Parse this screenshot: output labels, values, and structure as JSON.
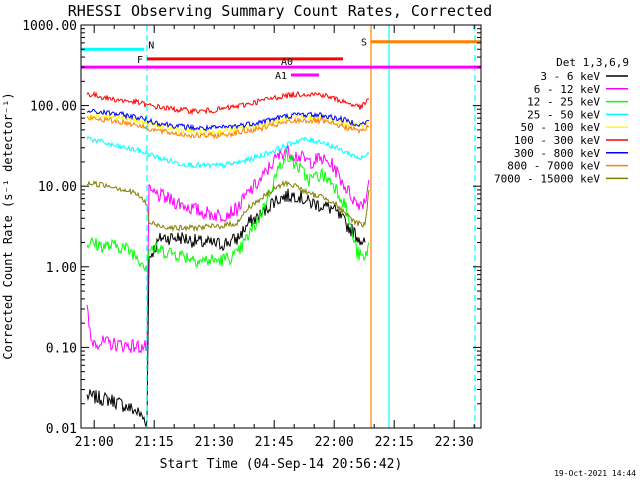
{
  "chart_data": {
    "type": "line",
    "title": "RHESSI Observing Summary Count Rates, Corrected",
    "xlabel": "Start Time (04-Sep-14 20:56:42)",
    "ylabel": "Corrected Count Rate (s⁻¹ detector⁻¹)",
    "x_unit": "minutes since 20:56:42",
    "xlim": [
      0,
      100
    ],
    "ylim": [
      0.01,
      1000
    ],
    "y_scale": "log",
    "x_ticks": [
      {
        "t": 3.3,
        "label": "21:00"
      },
      {
        "t": 18.3,
        "label": "21:15"
      },
      {
        "t": 33.3,
        "label": "21:30"
      },
      {
        "t": 48.3,
        "label": "21:45"
      },
      {
        "t": 63.3,
        "label": "22:00"
      },
      {
        "t": 78.3,
        "label": "22:15"
      },
      {
        "t": 93.3,
        "label": "22:30"
      }
    ],
    "y_ticks": [
      {
        "v": 0.01,
        "label": "0.01"
      },
      {
        "v": 0.1,
        "label": "0.10"
      },
      {
        "v": 1,
        "label": "1.00"
      },
      {
        "v": 10,
        "label": "10.00"
      },
      {
        "v": 100,
        "label": "100.00"
      },
      {
        "v": 1000,
        "label": "1000.00"
      }
    ],
    "legend": {
      "title": "Det 1,3,6,9",
      "position": "right"
    },
    "series": [
      {
        "name": "3 - 6 keV",
        "color": "#000000",
        "points": [
          [
            1.5,
            0.025
          ],
          [
            8,
            0.022
          ],
          [
            14,
            0.016
          ],
          [
            16.5,
            0.012
          ],
          [
            17,
            1.3
          ],
          [
            20,
            2.3
          ],
          [
            25,
            2.3
          ],
          [
            30,
            2.0
          ],
          [
            35,
            1.9
          ],
          [
            39,
            2.2
          ],
          [
            42,
            3.5
          ],
          [
            45,
            4.4
          ],
          [
            48,
            6.5
          ],
          [
            51,
            7.5
          ],
          [
            54,
            7.8
          ],
          [
            57,
            6.3
          ],
          [
            60,
            5.8
          ],
          [
            63,
            5.2
          ],
          [
            66,
            3.5
          ],
          [
            69,
            2.4
          ],
          [
            71,
            2.0
          ]
        ]
      },
      {
        "name": "6 - 12 keV",
        "color": "#ff00ff",
        "points": [
          [
            1.5,
            0.3
          ],
          [
            2.5,
            0.12
          ],
          [
            8,
            0.11
          ],
          [
            16.5,
            0.1
          ],
          [
            17,
            8.5
          ],
          [
            20,
            7.5
          ],
          [
            25,
            6.0
          ],
          [
            30,
            4.8
          ],
          [
            35,
            4.3
          ],
          [
            39,
            5.2
          ],
          [
            42,
            8.5
          ],
          [
            45,
            12
          ],
          [
            48,
            20
          ],
          [
            51,
            28
          ],
          [
            54,
            24
          ],
          [
            57,
            20
          ],
          [
            60,
            22
          ],
          [
            63,
            18
          ],
          [
            66,
            10
          ],
          [
            69,
            6
          ],
          [
            71,
            6.5
          ],
          [
            72,
            12
          ]
        ]
      },
      {
        "name": "12 - 25 keV",
        "color": "#00ff00",
        "points": [
          [
            1.5,
            2.0
          ],
          [
            6,
            1.8
          ],
          [
            10,
            1.8
          ],
          [
            13,
            1.5
          ],
          [
            16.5,
            1.0
          ],
          [
            17,
            1.7
          ],
          [
            20,
            1.6
          ],
          [
            25,
            1.4
          ],
          [
            30,
            1.2
          ],
          [
            35,
            1.2
          ],
          [
            39,
            1.4
          ],
          [
            42,
            2.5
          ],
          [
            45,
            4.5
          ],
          [
            48,
            11
          ],
          [
            51,
            25
          ],
          [
            54,
            18
          ],
          [
            57,
            12
          ],
          [
            60,
            14
          ],
          [
            63,
            11
          ],
          [
            66,
            6
          ],
          [
            69,
            1.5
          ],
          [
            71,
            1.2
          ],
          [
            72,
            2.0
          ]
        ]
      },
      {
        "name": "25 - 50 keV",
        "color": "#00ffff",
        "points": [
          [
            1.5,
            40
          ],
          [
            8,
            32
          ],
          [
            14,
            28
          ],
          [
            17,
            25
          ],
          [
            20,
            22
          ],
          [
            25,
            19
          ],
          [
            30,
            18
          ],
          [
            35,
            18
          ],
          [
            40,
            20
          ],
          [
            45,
            24
          ],
          [
            50,
            30
          ],
          [
            55,
            38
          ],
          [
            60,
            36
          ],
          [
            65,
            28
          ],
          [
            70,
            22
          ],
          [
            72,
            25
          ]
        ]
      },
      {
        "name": "50 - 100 keV",
        "color": "#ffff00",
        "points": [
          [
            1.5,
            78
          ],
          [
            8,
            72
          ],
          [
            14,
            66
          ],
          [
            17,
            60
          ],
          [
            20,
            55
          ],
          [
            25,
            50
          ],
          [
            30,
            47
          ],
          [
            35,
            48
          ],
          [
            40,
            52
          ],
          [
            45,
            58
          ],
          [
            50,
            66
          ],
          [
            55,
            72
          ],
          [
            60,
            70
          ],
          [
            65,
            62
          ],
          [
            70,
            56
          ],
          [
            72,
            62
          ]
        ]
      },
      {
        "name": "100 - 300 keV",
        "color": "#ff0000",
        "points": [
          [
            1.5,
            140
          ],
          [
            8,
            120
          ],
          [
            14,
            110
          ],
          [
            17,
            100
          ],
          [
            20,
            95
          ],
          [
            25,
            88
          ],
          [
            30,
            85
          ],
          [
            35,
            90
          ],
          [
            40,
            100
          ],
          [
            45,
            115
          ],
          [
            50,
            130
          ],
          [
            55,
            140
          ],
          [
            60,
            138
          ],
          [
            65,
            115
          ],
          [
            70,
            95
          ],
          [
            72,
            120
          ]
        ]
      },
      {
        "name": "300 - 800 keV",
        "color": "#0000ff",
        "points": [
          [
            1.5,
            85
          ],
          [
            8,
            80
          ],
          [
            14,
            72
          ],
          [
            17,
            65
          ],
          [
            20,
            60
          ],
          [
            25,
            55
          ],
          [
            30,
            52
          ],
          [
            35,
            53
          ],
          [
            40,
            57
          ],
          [
            45,
            63
          ],
          [
            50,
            72
          ],
          [
            55,
            78
          ],
          [
            60,
            76
          ],
          [
            65,
            68
          ],
          [
            70,
            58
          ],
          [
            72,
            65
          ]
        ]
      },
      {
        "name": "800 - 7000 keV",
        "color": "#ff8000",
        "points": [
          [
            1.5,
            70
          ],
          [
            8,
            65
          ],
          [
            14,
            58
          ],
          [
            17,
            52
          ],
          [
            20,
            48
          ],
          [
            25,
            44
          ],
          [
            30,
            42
          ],
          [
            35,
            43
          ],
          [
            40,
            47
          ],
          [
            45,
            52
          ],
          [
            50,
            60
          ],
          [
            55,
            66
          ],
          [
            60,
            64
          ],
          [
            65,
            56
          ],
          [
            70,
            48
          ],
          [
            72,
            55
          ]
        ]
      },
      {
        "name": "7000 - 15000 keV",
        "color": "#808000",
        "points": [
          [
            1.5,
            11
          ],
          [
            8,
            10
          ],
          [
            14,
            8
          ],
          [
            16.5,
            6
          ],
          [
            17,
            3.5
          ],
          [
            20,
            3.2
          ],
          [
            25,
            3.0
          ],
          [
            30,
            3.1
          ],
          [
            35,
            3.2
          ],
          [
            39,
            3.5
          ],
          [
            42,
            5.5
          ],
          [
            45,
            7
          ],
          [
            48,
            9
          ],
          [
            51,
            11
          ],
          [
            54,
            10
          ],
          [
            57,
            8
          ],
          [
            60,
            7.5
          ],
          [
            63,
            6.5
          ],
          [
            66,
            4.5
          ],
          [
            69,
            3.5
          ],
          [
            71,
            3.3
          ],
          [
            72,
            9
          ]
        ]
      }
    ],
    "annotations": [
      {
        "label": "N",
        "color": "#00ffff",
        "y": 500,
        "t0": 0,
        "t1": 15.8
      },
      {
        "label": "F",
        "color": "#ff0000",
        "y": 380,
        "t0": 16.5,
        "t1": 65.5
      },
      {
        "label": "A0",
        "color": "#ff00ff",
        "y": 300,
        "t0": 0,
        "t1": 100
      },
      {
        "label": "A1",
        "color": "#ff00ff",
        "y": 240,
        "t0": 52.5,
        "t1": 59.5
      },
      {
        "label": "S",
        "color": "#ff8000",
        "y": 620,
        "t0": 72.5,
        "t1": 100
      }
    ],
    "vlines": [
      {
        "t": 16.5,
        "color": "#00ffff",
        "style": "dashed"
      },
      {
        "t": 72.5,
        "color": "#ff8000",
        "style": "solid"
      },
      {
        "t": 77,
        "color": "#00ffff",
        "style": "solid"
      },
      {
        "t": 98.5,
        "color": "#00ffff",
        "style": "dashed"
      }
    ],
    "footer": "19-Oct-2021 14:44"
  }
}
